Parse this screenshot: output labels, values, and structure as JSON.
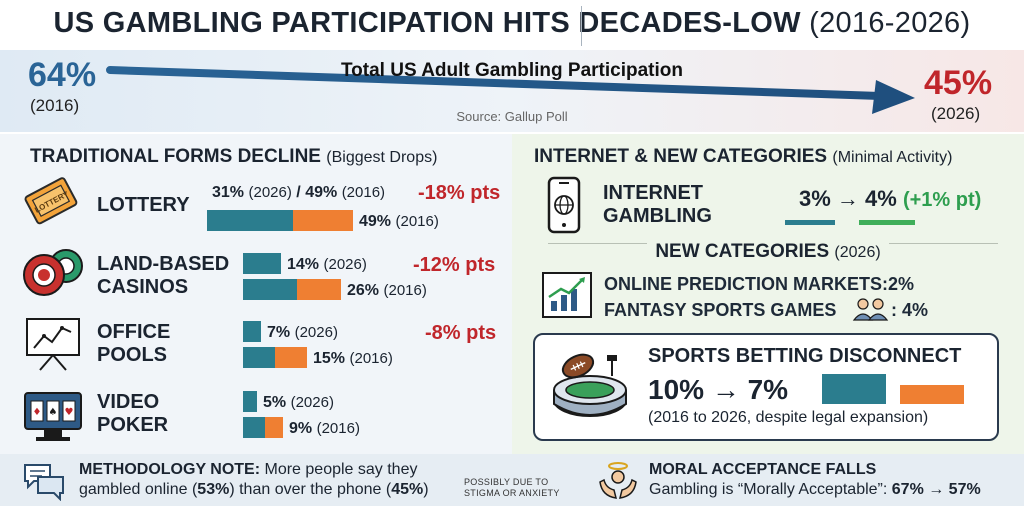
{
  "header": {
    "title": "US GAMBLING PARTICIPATION HITS DECADES-LOW",
    "title_years": "(2016-2026)"
  },
  "banner": {
    "left_value": "64%",
    "left_year": "(2016)",
    "right_value": "45%",
    "right_year": "(2026)",
    "title": "Total US Adult Gambling Participation",
    "source": "Source: Gallup Poll",
    "colors": {
      "left": "#2a6496",
      "right": "#c0262b"
    }
  },
  "traditional": {
    "heading": "TRADITIONAL FORMS DECLINE",
    "heading_note": "(Biggest Drops)",
    "rows": [
      {
        "label_line1": "LOTTERY",
        "label_line2": "",
        "icon": "lottery-ticket-icon",
        "val_2026": "31%",
        "val_2026_year": "(2026)",
        "sep": "/",
        "val_2016": "49%",
        "val_2016_year": "(2016)",
        "bar_label_2016": "49%",
        "drop": "-18% pts"
      },
      {
        "label_line1": "LAND-BASED",
        "label_line2": "CASINOS",
        "icon": "casino-chips-icon",
        "val_2026": "14%",
        "val_2026_year": "(2026)",
        "val_2016": "26%",
        "val_2016_year": "(2016)",
        "drop": "-12% pts"
      },
      {
        "label_line1": "OFFICE",
        "label_line2": "POOLS",
        "icon": "whiteboard-chart-icon",
        "val_2026": "7%",
        "val_2026_year": "(2026)",
        "val_2016": "15%",
        "val_2016_year": "(2016)",
        "drop": "-8% pts"
      },
      {
        "label_line1": "VIDEO",
        "label_line2": "POKER",
        "icon": "video-poker-machine-icon",
        "val_2026": "5%",
        "val_2026_year": "(2026)",
        "val_2016": "9%",
        "val_2016_year": "(2016)",
        "drop": ""
      }
    ],
    "values_2026": [
      31,
      14,
      7,
      5
    ],
    "values_2016": [
      49,
      26,
      15,
      9
    ],
    "colors": {
      "year_2026": "#2b7d8e",
      "year_2016": "#ef7f32",
      "drop": "#c0262b"
    }
  },
  "internet": {
    "heading": "INTERNET & NEW CATEGORIES",
    "heading_note": "(Minimal Activity)",
    "label_line1": "INTERNET",
    "label_line2": "GAMBLING",
    "icon": "smartphone-globe-icon",
    "value_from": "3%",
    "arrow": "→",
    "value_to": "4%",
    "change": "(+1% pt)",
    "change_color": "#2e9e4f"
  },
  "new_categories": {
    "heading": "NEW CATEGORIES",
    "heading_note": "(2026)",
    "icon": "growth-chart-icon",
    "line1_label": "ONLINE PREDICTION MARKETS:",
    "line1_value": "2%",
    "line2_label": "FANTASY SPORTS GAMES",
    "line2_icon": "people-icon",
    "line2_value": ": 4%"
  },
  "sports": {
    "heading": "SPORTS BETTING DISCONNECT",
    "icon": "stadium-football-icon",
    "value_from": "10%",
    "arrow": "→",
    "value_to": "7%",
    "note": "(2016 to 2026, despite legal expansion)",
    "values": [
      10,
      7
    ]
  },
  "footer": {
    "method_title": "METHODOLOGY NOTE:",
    "method_text1": " More people say they",
    "method_text2a": "gambled online (",
    "method_pct1": "53%",
    "method_text2b": ") than over the phone (",
    "method_pct2": "45%",
    "method_text2c": ")",
    "method_aside_1": "POSSIBLY DUE TO",
    "method_aside_2": "STIGMA OR ANXIETY",
    "method_icon": "chat-bubbles-icon",
    "moral_title": "MORAL ACCEPTANCE FALLS",
    "moral_text": "Gambling is “Morally Acceptable”: ",
    "moral_values": "67% → 57%",
    "moral_icon": "hands-halo-icon"
  }
}
